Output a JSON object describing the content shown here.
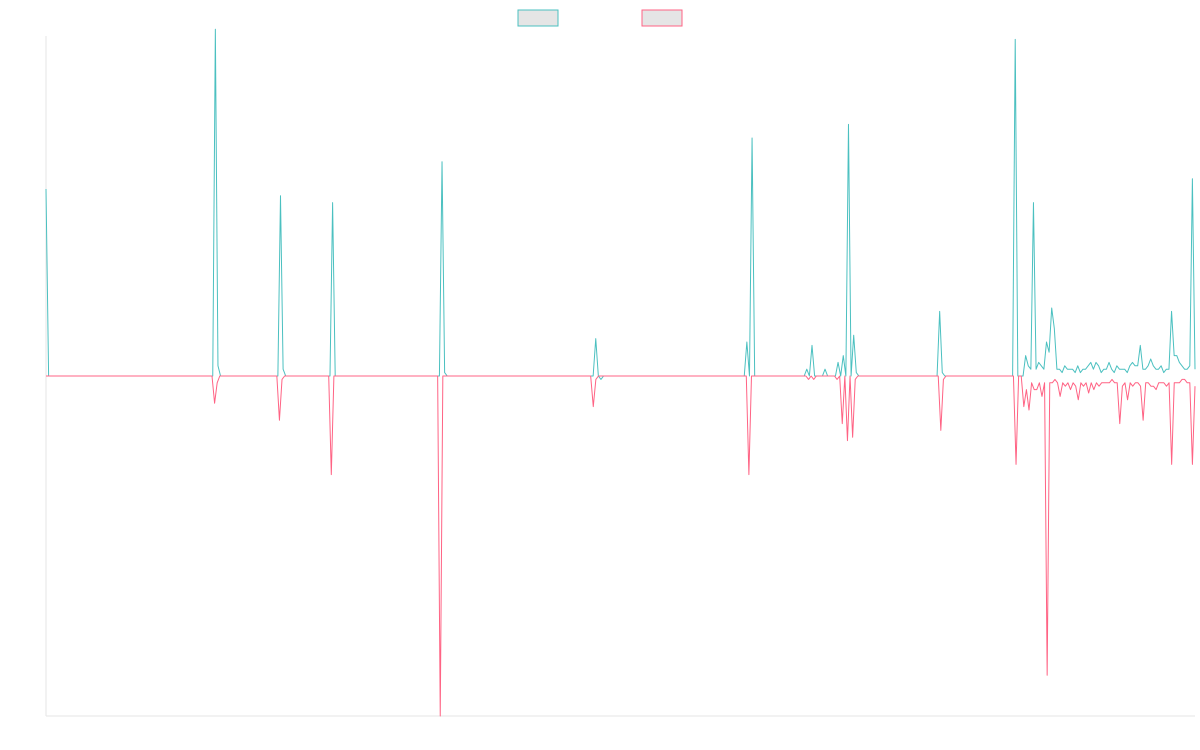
{
  "chart_data": {
    "type": "line",
    "title": "",
    "xlabel": "",
    "ylabel": "",
    "ylim": [
      -100,
      100
    ],
    "grid": false,
    "legend": {
      "placement": "top-center"
    },
    "series": [
      {
        "name": "",
        "color": "#4bc0c0",
        "fill": "#e5e5e5",
        "values": [
          55,
          0,
          0,
          0,
          0,
          0,
          0,
          0,
          0,
          0,
          0,
          0,
          0,
          0,
          0,
          0,
          0,
          0,
          0,
          0,
          0,
          0,
          0,
          0,
          0,
          0,
          0,
          0,
          0,
          0,
          0,
          0,
          0,
          0,
          0,
          0,
          0,
          0,
          0,
          0,
          0,
          0,
          0,
          0,
          0,
          0,
          0,
          0,
          0,
          0,
          0,
          0,
          0,
          0,
          0,
          0,
          0,
          0,
          0,
          0,
          0,
          0,
          0,
          0,
          0,
          102,
          3,
          0,
          0,
          0,
          0,
          0,
          0,
          0,
          0,
          0,
          0,
          0,
          0,
          0,
          0,
          0,
          0,
          0,
          0,
          0,
          0,
          0,
          0,
          0,
          53,
          2,
          0,
          0,
          0,
          0,
          0,
          0,
          0,
          0,
          0,
          0,
          0,
          0,
          0,
          0,
          0,
          0,
          0,
          0,
          51,
          0,
          0,
          0,
          0,
          0,
          0,
          0,
          0,
          0,
          0,
          0,
          0,
          0,
          0,
          0,
          0,
          0,
          0,
          0,
          0,
          0,
          0,
          0,
          0,
          0,
          0,
          0,
          0,
          0,
          0,
          0,
          0,
          0,
          0,
          0,
          0,
          0,
          0,
          0,
          0,
          0,
          63,
          1,
          0,
          0,
          0,
          0,
          0,
          0,
          0,
          0,
          0,
          0,
          0,
          0,
          0,
          0,
          0,
          0,
          0,
          0,
          0,
          0,
          0,
          0,
          0,
          0,
          0,
          0,
          0,
          0,
          0,
          0,
          0,
          0,
          0,
          0,
          0,
          0,
          0,
          0,
          0,
          0,
          0,
          0,
          0,
          0,
          0,
          0,
          0,
          0,
          0,
          0,
          0,
          0,
          0,
          0,
          0,
          0,
          0,
          11,
          0,
          -1,
          0,
          0,
          0,
          0,
          0,
          0,
          0,
          0,
          0,
          0,
          0,
          0,
          0,
          0,
          0,
          0,
          0,
          0,
          0,
          0,
          0,
          0,
          0,
          0,
          0,
          0,
          0,
          0,
          0,
          0,
          0,
          0,
          0,
          0,
          0,
          0,
          0,
          0,
          0,
          0,
          0,
          0,
          0,
          0,
          0,
          0,
          0,
          0,
          0,
          0,
          0,
          0,
          0,
          0,
          0,
          10,
          0,
          70,
          0,
          0,
          0,
          0,
          0,
          0,
          0,
          0,
          0,
          0,
          0,
          0,
          0,
          0,
          0,
          0,
          0,
          0,
          0,
          0,
          2,
          0,
          9,
          0,
          0,
          0,
          0,
          2,
          0,
          0,
          0,
          0,
          4,
          0,
          6,
          0,
          74,
          0,
          12,
          1,
          0,
          0,
          0,
          0,
          0,
          0,
          0,
          0,
          0,
          0,
          0,
          0,
          0,
          0,
          0,
          0,
          0,
          0,
          0,
          0,
          0,
          0,
          0,
          0,
          0,
          0,
          0,
          0,
          0,
          0,
          0,
          19,
          1,
          0,
          0,
          0,
          0,
          0,
          0,
          0,
          0,
          0,
          0,
          0,
          0,
          0,
          0,
          0,
          0,
          0,
          0,
          0,
          0,
          0,
          0,
          0,
          0,
          0,
          0,
          0,
          99,
          0,
          0,
          0,
          6,
          3,
          2,
          51,
          2,
          4,
          3,
          2,
          10,
          7,
          20,
          14,
          2,
          2,
          1,
          3,
          2,
          2,
          2,
          1,
          3,
          1,
          2,
          2,
          3,
          4,
          2,
          4,
          3,
          1,
          2,
          2,
          4,
          2,
          1,
          3,
          2,
          2,
          2,
          1,
          3,
          4,
          3,
          3,
          9,
          2,
          2,
          3,
          5,
          3,
          2,
          2,
          3,
          1,
          2,
          2,
          19,
          6,
          6,
          4,
          3,
          2,
          2,
          3,
          58,
          2
        ]
      },
      {
        "name": "",
        "color": "#ff6384",
        "fill": "#e5e5e5",
        "values": [
          0,
          0,
          0,
          0,
          0,
          0,
          0,
          0,
          0,
          0,
          0,
          0,
          0,
          0,
          0,
          0,
          0,
          0,
          0,
          0,
          0,
          0,
          0,
          0,
          0,
          0,
          0,
          0,
          0,
          0,
          0,
          0,
          0,
          0,
          0,
          0,
          0,
          0,
          0,
          0,
          0,
          0,
          0,
          0,
          0,
          0,
          0,
          0,
          0,
          0,
          0,
          0,
          0,
          0,
          0,
          0,
          0,
          0,
          0,
          0,
          0,
          0,
          0,
          0,
          0,
          -8,
          -2,
          0,
          0,
          0,
          0,
          0,
          0,
          0,
          0,
          0,
          0,
          0,
          0,
          0,
          0,
          0,
          0,
          0,
          0,
          0,
          0,
          0,
          0,
          0,
          -13,
          -1,
          0,
          0,
          0,
          0,
          0,
          0,
          0,
          0,
          0,
          0,
          0,
          0,
          0,
          0,
          0,
          0,
          0,
          0,
          -29,
          0,
          0,
          0,
          0,
          0,
          0,
          0,
          0,
          0,
          0,
          0,
          0,
          0,
          0,
          0,
          0,
          0,
          0,
          0,
          0,
          0,
          0,
          0,
          0,
          0,
          0,
          0,
          0,
          0,
          0,
          0,
          0,
          0,
          0,
          0,
          0,
          0,
          0,
          0,
          0,
          0,
          -100,
          0,
          0,
          0,
          0,
          0,
          0,
          0,
          0,
          0,
          0,
          0,
          0,
          0,
          0,
          0,
          0,
          0,
          0,
          0,
          0,
          0,
          0,
          0,
          0,
          0,
          0,
          0,
          0,
          0,
          0,
          0,
          0,
          0,
          0,
          0,
          0,
          0,
          0,
          0,
          0,
          0,
          0,
          0,
          0,
          0,
          0,
          0,
          0,
          0,
          0,
          0,
          0,
          0,
          0,
          0,
          0,
          0,
          0,
          -9,
          -1,
          0,
          0,
          0,
          0,
          0,
          0,
          0,
          0,
          0,
          0,
          0,
          0,
          0,
          0,
          0,
          0,
          0,
          0,
          0,
          0,
          0,
          0,
          0,
          0,
          0,
          0,
          0,
          0,
          0,
          0,
          0,
          0,
          0,
          0,
          0,
          0,
          0,
          0,
          0,
          0,
          0,
          0,
          0,
          0,
          0,
          0,
          0,
          0,
          0,
          0,
          0,
          0,
          0,
          0,
          0,
          0,
          0,
          0,
          -29,
          0,
          0,
          0,
          0,
          0,
          0,
          0,
          0,
          0,
          0,
          0,
          0,
          0,
          0,
          0,
          0,
          0,
          0,
          0,
          0,
          0,
          0,
          -1,
          0,
          -1,
          0,
          0,
          0,
          0,
          0,
          0,
          0,
          0,
          -1,
          0,
          -14,
          0,
          -19,
          0,
          -18,
          -1,
          0,
          0,
          0,
          0,
          0,
          0,
          0,
          0,
          0,
          0,
          0,
          0,
          0,
          0,
          0,
          0,
          0,
          0,
          0,
          0,
          0,
          0,
          0,
          0,
          0,
          0,
          0,
          0,
          0,
          0,
          0,
          0,
          -16,
          -1,
          0,
          0,
          0,
          0,
          0,
          0,
          0,
          0,
          0,
          0,
          0,
          0,
          0,
          0,
          0,
          0,
          0,
          0,
          0,
          0,
          0,
          0,
          0,
          0,
          0,
          0,
          0,
          -26,
          0,
          0,
          -9,
          -4,
          -10,
          -2,
          -4,
          -4,
          -2,
          -6,
          -2,
          -88,
          -2,
          -2,
          -1,
          -2,
          -6,
          -2,
          -3,
          -2,
          -4,
          -2,
          -3,
          -7,
          -2,
          -3,
          -2,
          -5,
          -2,
          -4,
          -2,
          -3,
          -2,
          -2,
          -2,
          -2,
          -1,
          -2,
          -2,
          -14,
          -3,
          -2,
          -7,
          -2,
          -3,
          -2,
          -2,
          -3,
          -13,
          -2,
          -2,
          -3,
          -3,
          -4,
          -2,
          -2,
          -2,
          -3,
          -2,
          -26,
          -2,
          -2,
          -2,
          -1,
          -1,
          -2,
          -2,
          -26,
          -3
        ]
      }
    ]
  }
}
